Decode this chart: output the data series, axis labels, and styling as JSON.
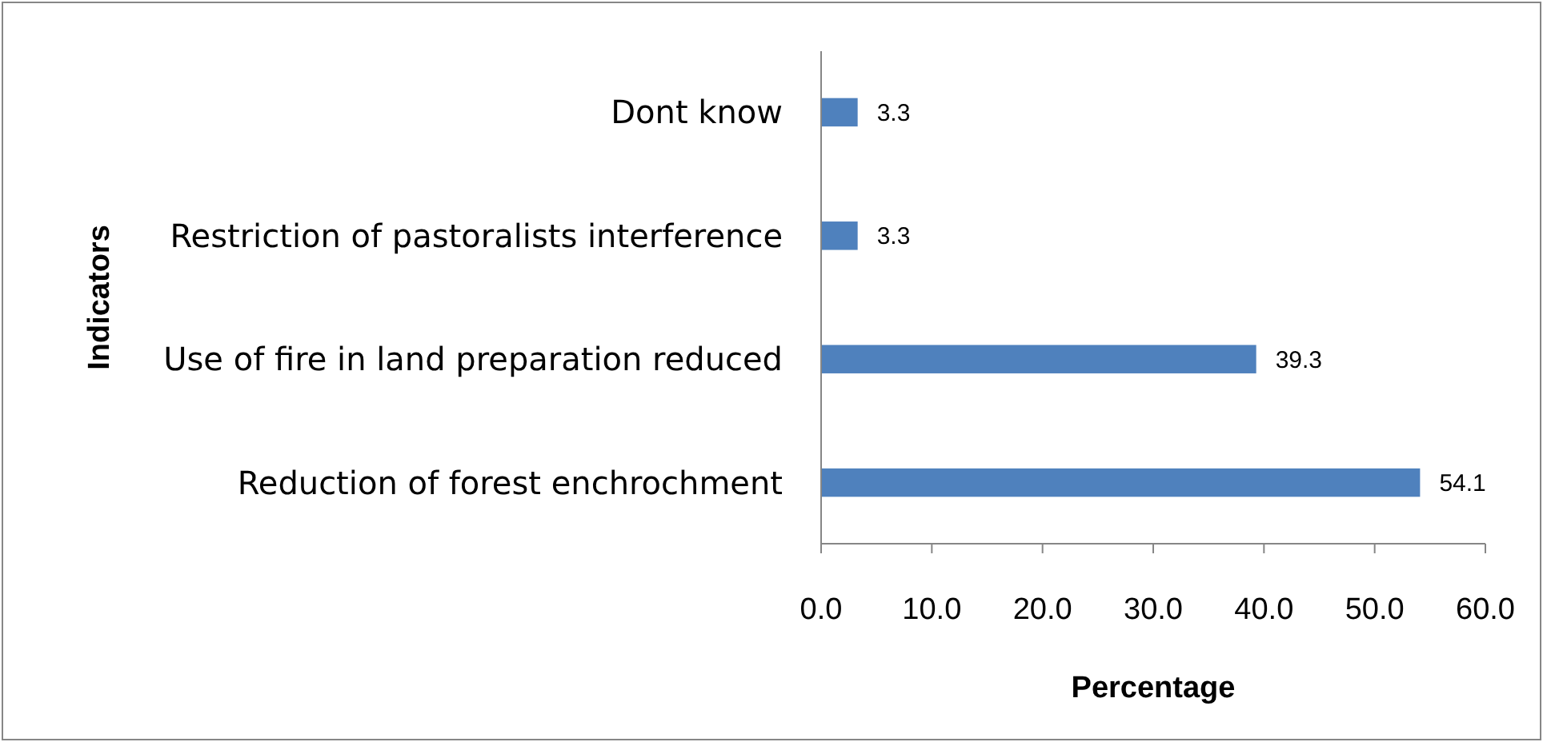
{
  "chart_data": {
    "type": "bar",
    "orientation": "horizontal",
    "xlabel": "Percentage",
    "ylabel": "Indicators",
    "categories": [
      "Dont know",
      "Restriction of pastoralists interference",
      "Use of fire in land preparation reduced",
      "Reduction of forest enchrochment"
    ],
    "values": [
      3.3,
      3.3,
      39.3,
      54.1
    ],
    "color": "#4f81bd",
    "data_labels": true,
    "xlim": [
      0,
      60
    ],
    "xticks": [
      {
        "value": 0,
        "label": "0.0"
      },
      {
        "value": 10,
        "label": "10.0"
      },
      {
        "value": 20,
        "label": "20.0"
      },
      {
        "value": 30,
        "label": "30.0"
      },
      {
        "value": 40,
        "label": "40.0"
      },
      {
        "value": 50,
        "label": "50.0"
      },
      {
        "value": 60,
        "label": "60.0"
      }
    ],
    "grid": false
  }
}
